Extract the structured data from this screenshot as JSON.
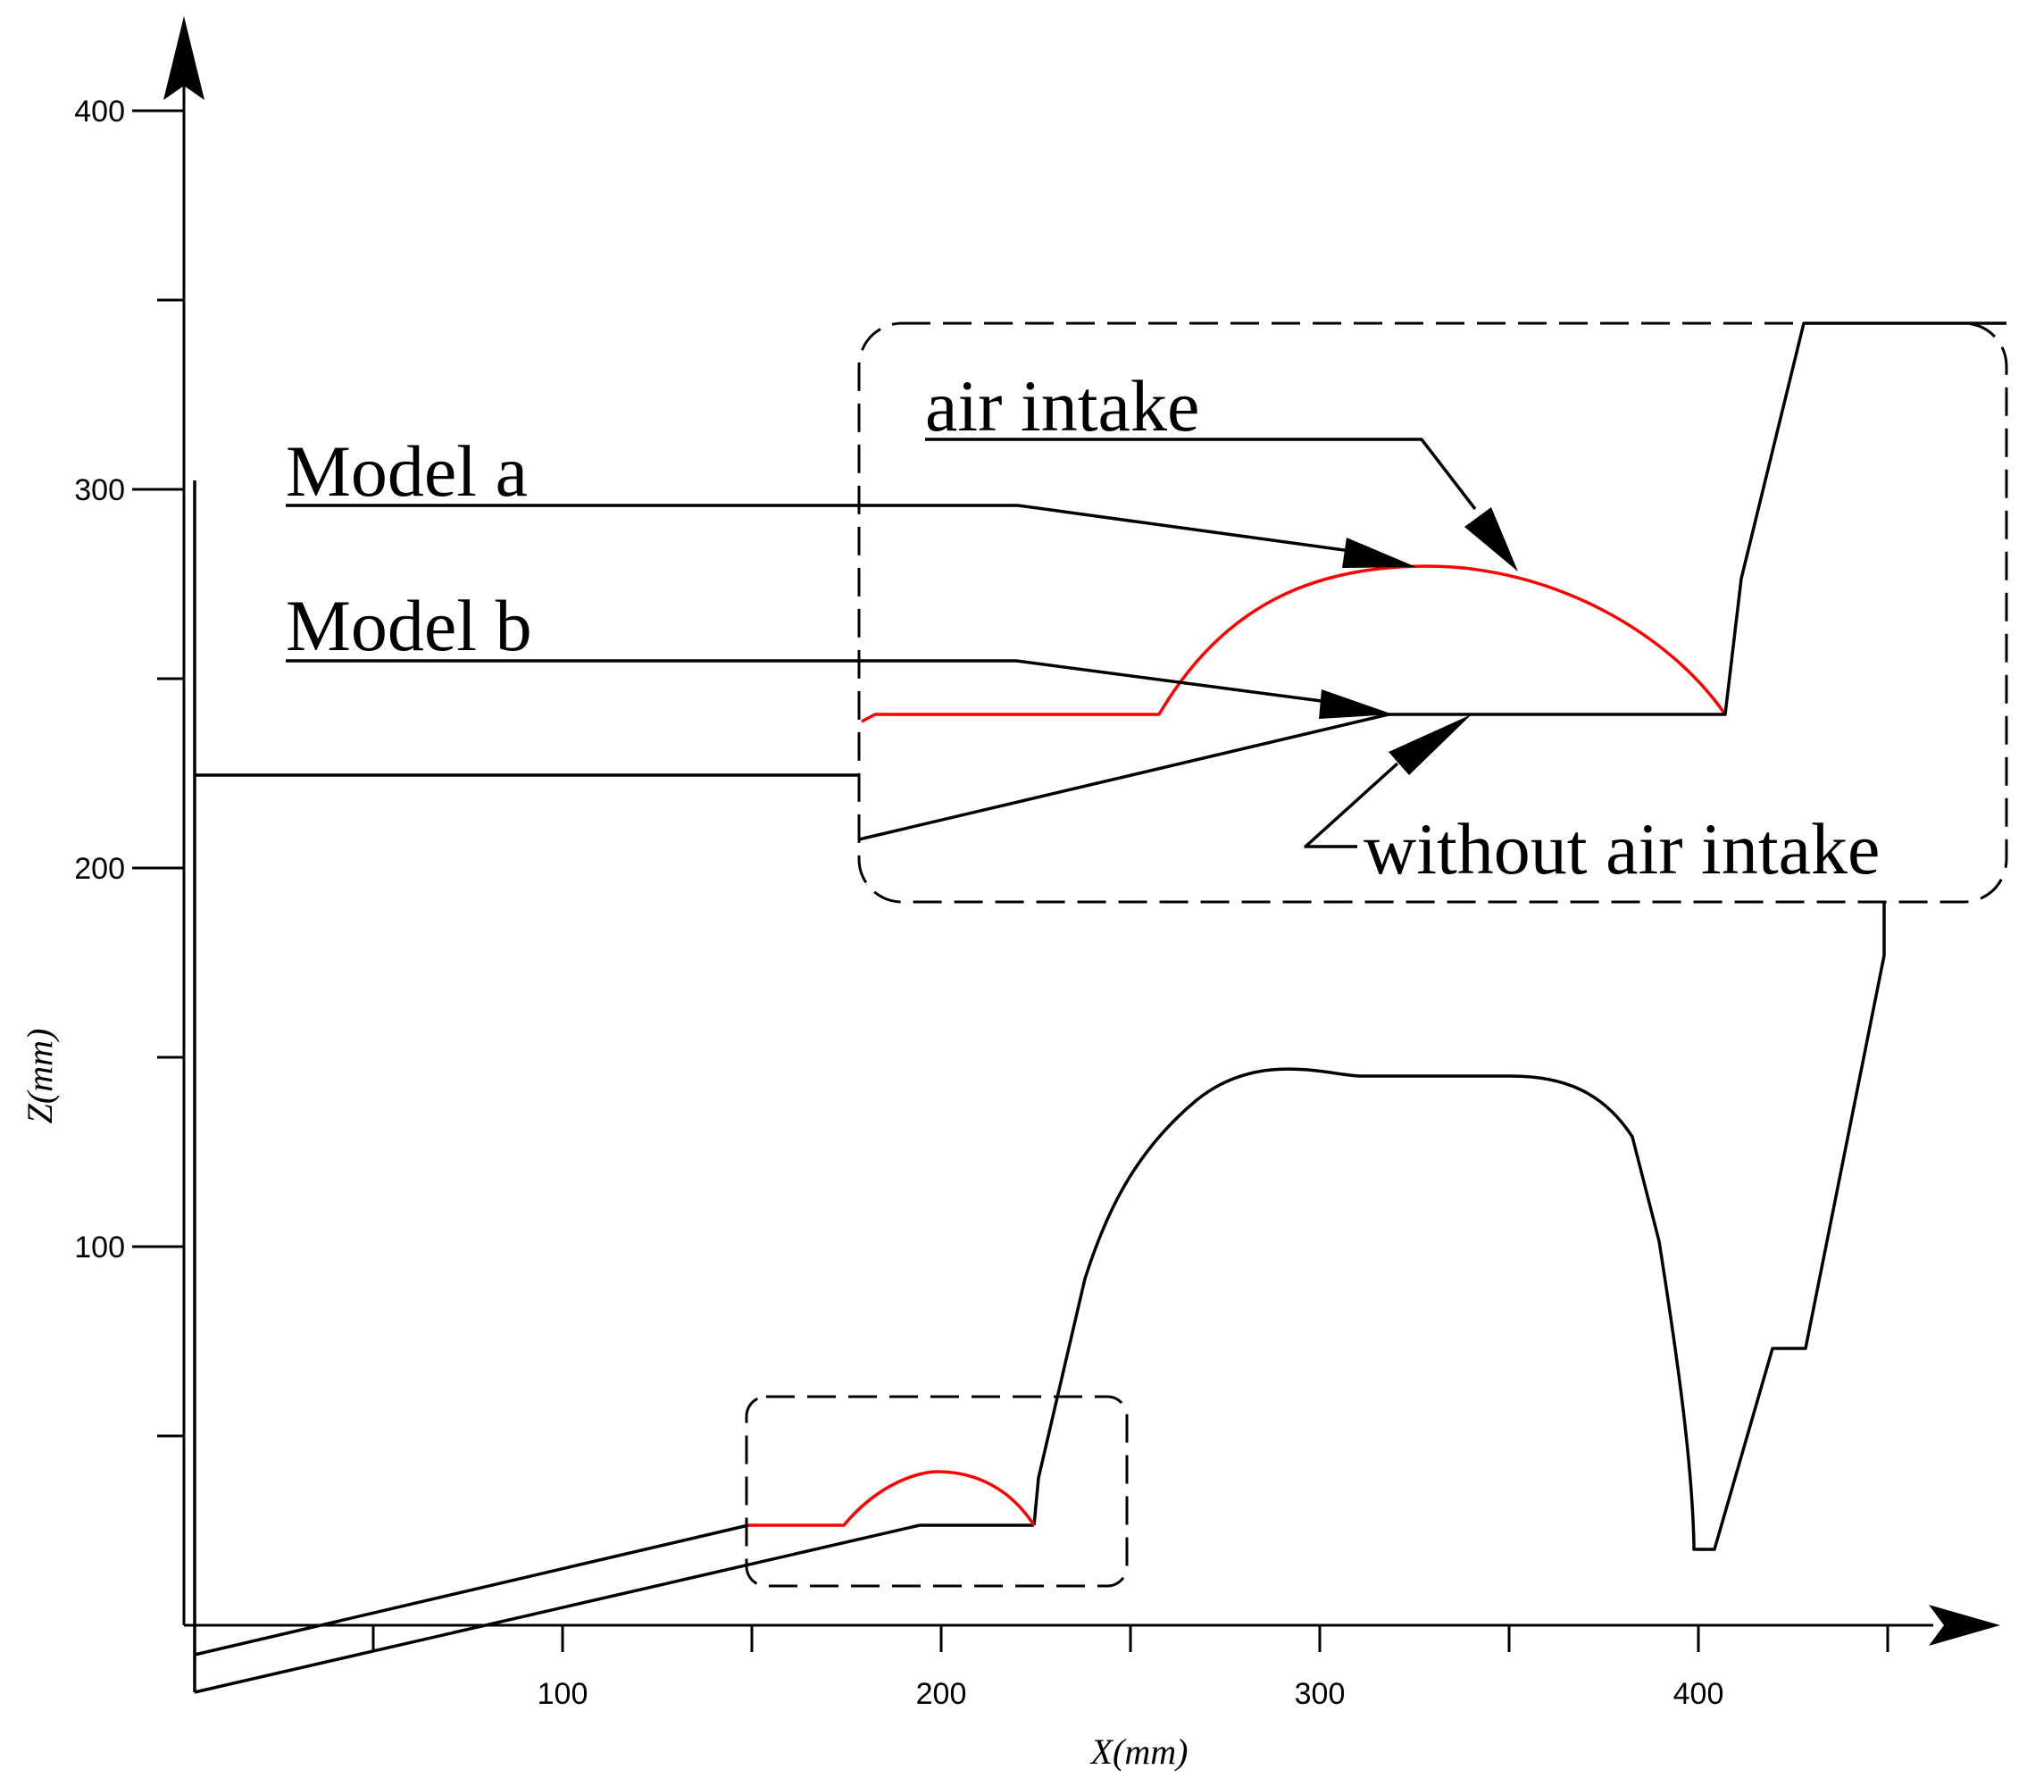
{
  "axes": {
    "x_label": "X(mm)",
    "y_label": "Z(mm)",
    "x_ticks": [
      "100",
      "200",
      "300",
      "400"
    ],
    "y_ticks": [
      "100",
      "200",
      "300",
      "400"
    ]
  },
  "callouts": {
    "model_a": "Model a",
    "model_b": "Model b",
    "air_intake": "air intake",
    "without_air_intake": "without air intake"
  },
  "colors": {
    "model_a_profile": "#ff0000",
    "outline": "#000000"
  }
}
